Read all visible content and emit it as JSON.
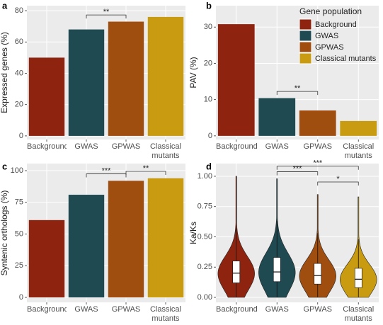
{
  "chart_data": [
    {
      "type": "bar",
      "label": "a",
      "ylabel": "Expressed genes (%)",
      "categories": [
        "Background",
        "GWAS",
        "GPWAS",
        "Classical mutants"
      ],
      "values": [
        50,
        68,
        73,
        76
      ],
      "colors": [
        "#8e2410",
        "#1f4a52",
        "#a04d10",
        "#c89b10"
      ],
      "ylim": [
        -2.3,
        83.2
      ],
      "yticks": [
        0,
        20,
        40,
        60,
        80
      ],
      "grid": true,
      "annotations": [
        {
          "text": "**",
          "from": "GWAS",
          "to": "GPWAS"
        }
      ]
    },
    {
      "type": "bar",
      "label": "b",
      "ylabel": "PAV (%)",
      "categories": [
        "Background",
        "GWAS",
        "GPWAS",
        "Classical mutants"
      ],
      "values": [
        30.8,
        10.4,
        7,
        4.1
      ],
      "colors": [
        "#8e2410",
        "#1f4a52",
        "#a04d10",
        "#c89b10"
      ],
      "ylim": [
        -1,
        35.9
      ],
      "yticks": [
        0,
        10,
        20,
        30
      ],
      "grid": true,
      "annotations": [
        {
          "text": "**",
          "from": "GWAS",
          "to": "GPWAS"
        }
      ],
      "legend": {
        "title": "Gene population",
        "position": "top-right"
      }
    },
    {
      "type": "bar",
      "label": "c",
      "ylabel": "Syntenic orthologs (%)",
      "categories": [
        "Background",
        "GWAS",
        "GPWAS",
        "Classical mutants"
      ],
      "values": [
        61,
        81,
        92,
        94
      ],
      "colors": [
        "#8e2410",
        "#1f4a52",
        "#a04d10",
        "#c89b10"
      ],
      "ylim": [
        -3.9,
        105.6
      ],
      "yticks": [
        0,
        25,
        50,
        75,
        100
      ],
      "grid": true,
      "annotations": [
        {
          "text": "***",
          "from": "GWAS",
          "to": "GPWAS"
        },
        {
          "text": "**",
          "from": "GPWAS",
          "to": "Classical mutants"
        }
      ]
    },
    {
      "type": "violin",
      "label": "d",
      "ylabel": "Ka/Ks",
      "categories": [
        "Background",
        "GWAS",
        "GPWAS",
        "Classical mutants"
      ],
      "min": [
        0,
        0,
        0,
        0
      ],
      "q1": [
        0.12,
        0.13,
        0.11,
        0.08
      ],
      "median": [
        0.2,
        0.21,
        0.18,
        0.15
      ],
      "q3": [
        0.3,
        0.33,
        0.28,
        0.24
      ],
      "whisker_high": [
        0.57,
        0.63,
        0.53,
        0.48
      ],
      "max": [
        1.0,
        0.98,
        0.85,
        0.83
      ],
      "colors": [
        "#8e2410",
        "#1f4a52",
        "#a04d10",
        "#c89b10"
      ],
      "ylim": [
        -0.041,
        1.105
      ],
      "yticks": [
        {
          "value": 0,
          "label": "0.00"
        },
        {
          "value": 0.25,
          "label": "0.25"
        },
        {
          "value": 0.5,
          "label": "0.50"
        },
        {
          "value": 0.75,
          "label": "0.75"
        },
        {
          "value": 1,
          "label": "1.00"
        }
      ],
      "grid": true,
      "annotations": [
        {
          "text": "***",
          "from": "GWAS",
          "to": "GPWAS"
        },
        {
          "text": "***",
          "from": "GWAS",
          "to": "Classical mutants"
        },
        {
          "text": "*",
          "from": "GPWAS",
          "to": "Classical mutants"
        }
      ]
    }
  ]
}
